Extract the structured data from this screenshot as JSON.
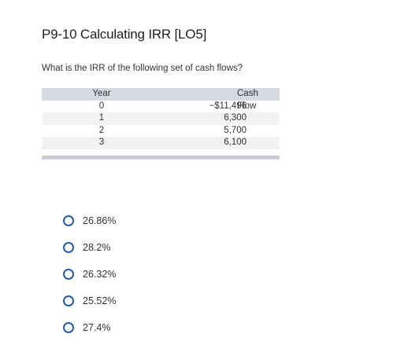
{
  "question": {
    "title": "P9-10 Calculating IRR [LO5]",
    "text": "What is the IRR of the following set of cash flows?"
  },
  "table": {
    "headers": [
      "Year",
      "Cash Flow"
    ],
    "rows": [
      {
        "year": "0",
        "cash_flow": "−$11,496"
      },
      {
        "year": "1",
        "cash_flow": "6,300"
      },
      {
        "year": "2",
        "cash_flow": "5,700"
      },
      {
        "year": "3",
        "cash_flow": "6,100"
      }
    ]
  },
  "options": [
    {
      "label": "26.86%"
    },
    {
      "label": "28.2%"
    },
    {
      "label": "26.32%"
    },
    {
      "label": "25.52%"
    },
    {
      "label": "27.4%"
    }
  ],
  "colors": {
    "radio_border": "#1f5cb8",
    "table_header_bg": "#d6d9e1",
    "row_shade_bg": "#f2f2f2"
  }
}
